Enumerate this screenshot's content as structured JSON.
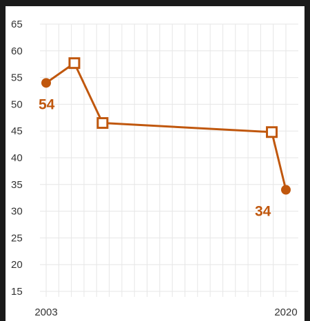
{
  "chart_data": {
    "type": "line",
    "x_start": 2003,
    "x_end": 2020,
    "x_tick_labels": [
      "2003",
      "2020"
    ],
    "ylim": [
      15,
      65
    ],
    "y_ticks": [
      15,
      20,
      25,
      30,
      35,
      40,
      45,
      50,
      55,
      60,
      65
    ],
    "grid": true,
    "series": [
      {
        "color": "#c0570d",
        "points": [
          {
            "x": 2003,
            "y": 54,
            "marker": "filled-circle",
            "label": "54"
          },
          {
            "x": 2005,
            "y": 57.7,
            "marker": "open-square"
          },
          {
            "x": 2007,
            "y": 46.5,
            "marker": "open-square"
          },
          {
            "x": 2019,
            "y": 44.8,
            "marker": "open-square"
          },
          {
            "x": 2020,
            "y": 34,
            "marker": "filled-circle",
            "label": "34"
          }
        ]
      }
    ]
  }
}
